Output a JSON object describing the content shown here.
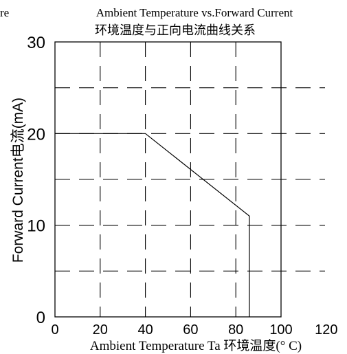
{
  "chart_data": {
    "type": "line",
    "title_en": "Ambient Temperature vs.Forward Current",
    "title_cn": "环境温度与正向电流曲线关系",
    "left_edge_label": "re",
    "ylabel": "Forward Current电流(mA)",
    "xlabel": "Ambient Temperature Ta 环境温度(° C)",
    "xlim": [
      0,
      120
    ],
    "ylim": [
      0,
      30
    ],
    "x_ticks": [
      "0",
      "20",
      "40",
      "60",
      "80",
      "100",
      "120"
    ],
    "y_ticks": [
      "0",
      "10",
      "20",
      "30"
    ],
    "grid": true,
    "series": [
      {
        "x": [
          0,
          40,
          86,
          86
        ],
        "y": [
          20,
          20,
          11,
          0
        ]
      }
    ]
  }
}
